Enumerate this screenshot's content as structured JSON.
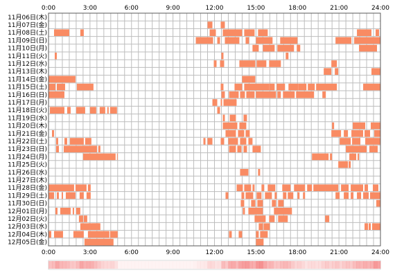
{
  "chart_data": {
    "type": "heatmap",
    "title": "",
    "xlabel": "",
    "ylabel": "",
    "x_tick_labels": [
      "0:00",
      "3:00",
      "6:00",
      "9:00",
      "12:00",
      "15:00",
      "18:00",
      "21:00",
      "24:00"
    ],
    "x_range_hours": [
      0,
      24
    ],
    "grid": true,
    "colors": {
      "activity": "#f98b63",
      "activity_light": "#fbb596",
      "grid": "#bdbdbd",
      "frame": "#5a5a5a"
    },
    "rows": [
      {
        "label": "11月06日(木)",
        "intervals": []
      },
      {
        "label": "11月07日(金)",
        "intervals": [
          [
            11.5,
            11.85
          ],
          [
            12.45,
            12.75
          ]
        ]
      },
      {
        "label": "11月08日(土)",
        "intervals": [
          [
            0.4,
            1.5
          ],
          [
            2.3,
            2.55
          ],
          [
            11.65,
            12.1
          ],
          [
            12.6,
            14.0
          ],
          [
            14.15,
            14.9
          ],
          [
            15.15,
            15.85
          ],
          [
            22.3,
            23.35
          ],
          [
            23.65,
            23.9
          ]
        ]
      },
      {
        "label": "11月09日(日)",
        "intervals": [
          [
            10.65,
            11.9
          ],
          [
            12.2,
            12.4
          ],
          [
            12.75,
            13.8
          ],
          [
            14.25,
            14.5
          ],
          [
            15.0,
            16.2
          ],
          [
            16.75,
            18.0
          ],
          [
            20.75,
            21.9
          ],
          [
            22.1,
            24.0
          ]
        ]
      },
      {
        "label": "11月10日(月)",
        "intervals": [
          [
            14.75,
            15.2
          ],
          [
            15.5,
            16.35
          ],
          [
            16.55,
            17.75
          ],
          [
            17.95,
            18.2
          ],
          [
            22.45,
            23.75
          ]
        ]
      },
      {
        "label": "11月11日(火)",
        "intervals": [
          [
            0.45,
            0.6
          ],
          [
            12.5,
            12.65
          ],
          [
            17.15,
            17.35
          ]
        ]
      },
      {
        "label": "11月12日(水)",
        "intervals": [
          [
            11.95,
            12.15
          ],
          [
            12.4,
            12.7
          ],
          [
            13.8,
            14.95
          ],
          [
            15.05,
            15.75
          ],
          [
            15.95,
            16.8
          ],
          [
            20.45,
            20.85
          ]
        ]
      },
      {
        "label": "11月13日(木)",
        "intervals": [
          [
            19.9,
            20.45
          ],
          [
            20.7,
            20.95
          ],
          [
            23.35,
            24.0
          ]
        ]
      },
      {
        "label": "11月14日(金)",
        "intervals": [
          [
            0.0,
            1.95
          ],
          [
            14.0,
            14.95
          ]
        ]
      },
      {
        "label": "11月15日(土)",
        "intervals": [
          [
            0.0,
            0.5
          ],
          [
            0.6,
            1.2
          ],
          [
            2.05,
            3.25
          ],
          [
            12.45,
            12.65
          ],
          [
            13.45,
            14.0
          ],
          [
            14.15,
            15.95
          ],
          [
            15.95,
            16.35
          ],
          [
            16.5,
            17.1
          ],
          [
            17.35,
            18.05
          ],
          [
            18.05,
            18.65
          ],
          [
            18.75,
            19.25
          ],
          [
            19.35,
            20.85
          ],
          [
            22.75,
            24.0
          ]
        ]
      },
      {
        "label": "11月16日(日)",
        "intervals": [
          [
            0.0,
            1.15
          ],
          [
            12.5,
            12.75
          ],
          [
            13.05,
            13.75
          ],
          [
            13.85,
            14.2
          ],
          [
            14.3,
            14.9
          ],
          [
            15.0,
            16.45
          ],
          [
            16.55,
            16.8
          ],
          [
            16.95,
            17.8
          ],
          [
            17.9,
            19.2
          ],
          [
            19.8,
            20.05
          ]
        ]
      },
      {
        "label": "11月17日(月)",
        "intervals": [
          [
            11.85,
            12.2
          ],
          [
            12.45,
            12.55
          ],
          [
            12.65,
            13.6
          ]
        ]
      },
      {
        "label": "11月18日(火)",
        "intervals": [
          [
            0.1,
            1.15
          ],
          [
            1.35,
            1.6
          ],
          [
            2.0,
            2.65
          ],
          [
            3.0,
            3.45
          ],
          [
            3.7,
            4.1
          ],
          [
            4.25,
            4.35
          ],
          [
            4.45,
            4.95
          ],
          [
            12.2,
            12.4
          ]
        ]
      },
      {
        "label": "11月19日(水)",
        "intervals": [
          [
            12.6,
            12.75
          ],
          [
            13.1,
            13.55
          ],
          [
            14.1,
            14.35
          ]
        ]
      },
      {
        "label": "11月20日(木)",
        "intervals": [
          [
            12.6,
            13.65
          ],
          [
            13.8,
            14.3
          ],
          [
            20.5,
            20.65
          ],
          [
            22.0,
            22.9
          ],
          [
            23.3,
            24.0
          ]
        ]
      },
      {
        "label": "11月21日(金)",
        "intervals": [
          [
            0.25,
            0.4
          ],
          [
            12.8,
            13.55
          ],
          [
            13.7,
            14.15
          ],
          [
            14.25,
            14.55
          ],
          [
            20.45,
            21.15
          ],
          [
            21.35,
            21.65
          ],
          [
            21.9,
            22.75
          ],
          [
            22.85,
            23.25
          ],
          [
            23.55,
            24.0
          ]
        ]
      },
      {
        "label": "11月22日(土)",
        "intervals": [
          [
            0.55,
            0.7
          ],
          [
            1.15,
            1.35
          ],
          [
            1.55,
            2.55
          ],
          [
            2.65,
            3.1
          ],
          [
            11.2,
            11.35
          ],
          [
            11.5,
            11.85
          ],
          [
            12.45,
            12.7
          ],
          [
            13.0,
            13.7
          ],
          [
            13.85,
            14.3
          ],
          [
            14.45,
            14.75
          ],
          [
            21.05,
            21.85
          ],
          [
            21.95,
            22.55
          ],
          [
            22.9,
            24.0
          ]
        ]
      },
      {
        "label": "11月23日(日)",
        "intervals": [
          [
            0.55,
            0.75
          ],
          [
            1.1,
            3.5
          ],
          [
            3.6,
            3.75
          ],
          [
            13.05,
            13.55
          ],
          [
            13.65,
            13.95
          ],
          [
            14.1,
            14.35
          ],
          [
            14.75,
            15.35
          ],
          [
            21.5,
            23.0
          ],
          [
            23.2,
            23.8
          ]
        ]
      },
      {
        "label": "11月24日(月)",
        "intervals": [
          [
            2.5,
            4.85
          ],
          [
            4.95,
            5.0
          ],
          [
            19.05,
            20.25
          ],
          [
            20.35,
            20.5
          ],
          [
            21.75,
            22.25
          ],
          [
            22.35,
            22.45
          ]
        ]
      },
      {
        "label": "11月25日(火)",
        "intervals": [
          [
            20.95,
            21.65
          ],
          [
            21.7,
            21.85
          ]
        ]
      },
      {
        "label": "11月26日(水)",
        "intervals": [
          [
            13.85,
            14.45
          ],
          [
            15.15,
            15.3
          ]
        ]
      },
      {
        "label": "11月27日(木)",
        "intervals": [
          [
            24.0,
            24.1
          ]
        ]
      },
      {
        "label": "11月28日(金)",
        "intervals": [
          [
            0.0,
            1.85
          ],
          [
            1.95,
            2.75
          ],
          [
            2.85,
            3.05
          ],
          [
            13.6,
            14.05
          ],
          [
            14.15,
            14.65
          ],
          [
            14.75,
            14.9
          ],
          [
            15.4,
            15.6
          ],
          [
            15.85,
            16.4
          ],
          [
            16.9,
            17.5
          ],
          [
            17.75,
            18.55
          ],
          [
            18.7,
            19.05
          ],
          [
            19.15,
            20.95
          ],
          [
            21.15,
            21.7
          ],
          [
            21.85,
            22.75
          ],
          [
            22.85,
            23.1
          ],
          [
            23.45,
            23.85
          ]
        ]
      },
      {
        "label": "11月29日(土)",
        "intervals": [
          [
            0.0,
            0.4
          ],
          [
            0.6,
            0.75
          ],
          [
            0.95,
            1.05
          ],
          [
            1.25,
            1.95
          ],
          [
            2.25,
            2.55
          ],
          [
            2.75,
            3.05
          ],
          [
            12.8,
            13.0
          ],
          [
            13.95,
            14.15
          ],
          [
            14.25,
            14.8
          ],
          [
            15.05,
            15.4
          ],
          [
            15.65,
            16.15
          ],
          [
            16.35,
            16.5
          ],
          [
            16.95,
            17.2
          ],
          [
            17.3,
            17.7
          ],
          [
            18.0,
            18.15
          ],
          [
            18.4,
            18.55
          ],
          [
            20.75,
            21.05
          ],
          [
            21.35,
            21.7
          ],
          [
            21.85,
            22.05
          ],
          [
            22.3,
            22.6
          ],
          [
            22.75,
            23.15
          ],
          [
            23.25,
            24.0
          ]
        ]
      },
      {
        "label": "11月30日(日)",
        "intervals": [
          [
            13.9,
            14.15
          ],
          [
            14.65,
            14.95
          ],
          [
            15.1,
            15.5
          ],
          [
            16.15,
            16.45
          ],
          [
            16.6,
            17.0
          ],
          [
            23.7,
            24.0
          ]
        ]
      },
      {
        "label": "12月01日(月)",
        "intervals": [
          [
            0.5,
            0.65
          ],
          [
            0.85,
            1.6
          ],
          [
            1.75,
            1.85
          ],
          [
            2.0,
            2.3
          ],
          [
            14.05,
            14.2
          ],
          [
            14.45,
            15.5
          ],
          [
            16.3,
            17.6
          ]
        ]
      },
      {
        "label": "12月02日(火)",
        "intervals": [
          [
            2.2,
            2.5
          ],
          [
            2.55,
            2.8
          ],
          [
            14.9,
            15.7
          ],
          [
            15.95,
            16.35
          ],
          [
            16.6,
            17.3
          ],
          [
            20.0,
            20.3
          ]
        ]
      },
      {
        "label": "12月03日(水)",
        "intervals": [
          [
            2.3,
            3.65
          ],
          [
            2.9,
            3.05
          ],
          [
            3.15,
            3.75
          ],
          [
            15.2,
            15.5
          ],
          [
            15.55,
            16.0
          ],
          [
            22.85,
            23.1
          ],
          [
            23.15,
            23.3
          ],
          [
            23.4,
            24.0
          ]
        ]
      },
      {
        "label": "12月04日(木)",
        "intervals": [
          [
            0.0,
            0.2
          ],
          [
            0.4,
            1.05
          ],
          [
            1.8,
            2.55
          ],
          [
            2.85,
            4.4
          ],
          [
            4.45,
            5.0
          ],
          [
            13.05,
            13.25
          ],
          [
            13.75,
            14.0
          ],
          [
            15.0,
            15.2
          ],
          [
            15.3,
            15.85
          ]
        ]
      },
      {
        "label": "12月05日(金)",
        "intervals": [
          [
            2.6,
            4.7
          ],
          [
            15.0,
            15.55
          ]
        ]
      }
    ],
    "summary_bar": {
      "caption": "",
      "peaks": [
        [
          0.0,
          5.0,
          0.55
        ],
        [
          5.0,
          10.8,
          0.06
        ],
        [
          10.8,
          24.0,
          0.6
        ]
      ]
    }
  }
}
